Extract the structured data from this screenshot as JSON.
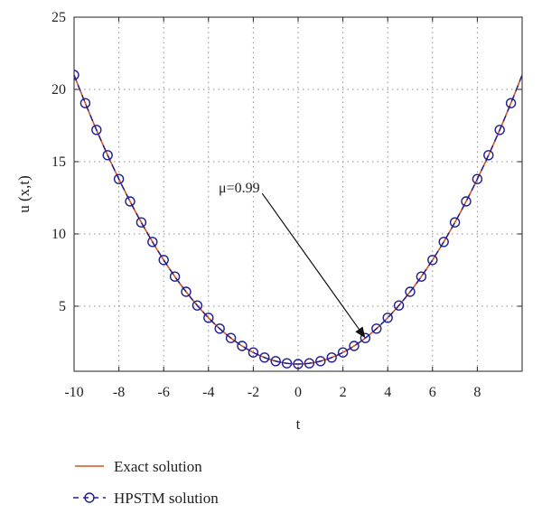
{
  "chart_data": {
    "type": "line",
    "title": "",
    "xlabel": "t",
    "ylabel": "u (x,t)",
    "xlim": [
      -10,
      10
    ],
    "ylim": [
      0.5,
      25
    ],
    "x_ticks": [
      -10,
      -8,
      -6,
      -4,
      -2,
      0,
      2,
      4,
      6,
      8
    ],
    "x_tick_labels": [
      "-10",
      "-8",
      "-6",
      "-4",
      "-2",
      "0",
      "2",
      "4",
      "6",
      "8"
    ],
    "y_ticks": [
      5,
      10,
      15,
      20,
      25
    ],
    "y_tick_labels": [
      "5",
      "10",
      "15",
      "20",
      "25"
    ],
    "grid": true,
    "legend_placement": "below",
    "series": [
      {
        "name": "Exact solution",
        "style": "solid-line",
        "color": "#d9531e",
        "function": "0.2*t^2 + 1",
        "x_range": [
          -10,
          10
        ]
      },
      {
        "name": "HPSTM solution",
        "style": "dashed-circle-markers",
        "color": "#1f1f8f",
        "x": [
          -10,
          -9.5,
          -9,
          -8.5,
          -8,
          -7.5,
          -7,
          -6.5,
          -6,
          -5.5,
          -5,
          -4.5,
          -4,
          -3.5,
          -3,
          -2.5,
          -2,
          -1.5,
          -1,
          -0.5,
          0,
          0.5,
          1,
          1.5,
          2,
          2.5,
          3,
          3.5,
          4,
          4.5,
          5,
          5.5,
          6,
          6.5,
          7,
          7.5,
          8,
          8.5,
          9,
          9.5
        ],
        "y": [
          21,
          19.05,
          17.2,
          15.45,
          13.8,
          12.25,
          10.8,
          9.45,
          8.2,
          7.05,
          6,
          5.05,
          4.2,
          3.45,
          2.8,
          2.25,
          1.8,
          1.45,
          1.2,
          1.05,
          1,
          1.05,
          1.2,
          1.45,
          1.8,
          2.25,
          2.8,
          3.45,
          4.2,
          5.05,
          6,
          7.05,
          8.2,
          9.45,
          10.8,
          12.25,
          13.8,
          15.45,
          17.2,
          19.05
        ]
      }
    ],
    "annotations": [
      {
        "text": "μ=0.99",
        "arrow_from": [
          -1.6,
          12.8
        ],
        "arrow_to": [
          3,
          2.8
        ]
      }
    ]
  },
  "colors": {
    "exact_line": "#d9531e",
    "hpstm": "#1f1f8f",
    "grid": "#8a8a8a",
    "axis": "#222222"
  }
}
